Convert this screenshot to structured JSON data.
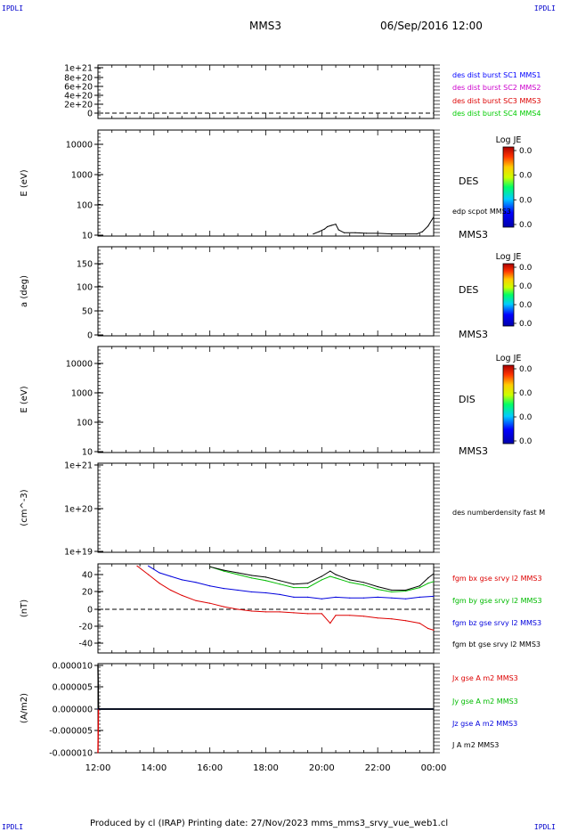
{
  "corners": {
    "top_left": "IPDLI",
    "top_right": "IPDLI",
    "bottom_left": "IPDLI",
    "bottom_right": "IPDLI"
  },
  "header": {
    "spacecraft": "MMS3",
    "datetime": "06/Sep/2016 12:00"
  },
  "footer": {
    "text": "Produced by cl (IRAP)   Printing date: 27/Nov/2023   mms_mms3_srvy_vue_web1.cl"
  },
  "x_axis": {
    "ticks": [
      "12:00",
      "14:00",
      "16:00",
      "18:00",
      "20:00",
      "22:00",
      "00:00"
    ]
  },
  "panels": [
    {
      "id": "burst",
      "ylabel": "",
      "yticks": [
        "1e+21",
        "8e+20",
        "6e+20",
        "4e+20",
        "2e+20",
        "0"
      ],
      "labels": [
        {
          "text": "des dist burst SC1 MMS1",
          "color": "#0000ff"
        },
        {
          "text": "des dist burst SC2 MMS2",
          "color": "#cc00cc"
        },
        {
          "text": "des dist burst SC3 MMS3",
          "color": "#dd0000"
        },
        {
          "text": "des dist burst SC4 MMS4",
          "color": "#00cc00"
        }
      ]
    },
    {
      "id": "des-energy",
      "ylabel": "E (eV)",
      "yticks": [
        "10000",
        "1000",
        "100",
        "10"
      ],
      "labels": [
        {
          "text": "DES",
          "color": "#000000"
        },
        {
          "text": "edp scpot MMS3",
          "color": "#000000"
        },
        {
          "text": "MMS3",
          "color": "#000000"
        }
      ],
      "colorbar": {
        "title": "Log JE",
        "values": [
          "0.0",
          "0.0",
          "0.0",
          "0.0"
        ]
      }
    },
    {
      "id": "des-pitch",
      "ylabel": "a (deg)",
      "yticks": [
        "150",
        "100",
        "50",
        "0"
      ],
      "labels": [
        {
          "text": "DES",
          "color": "#000000"
        },
        {
          "text": "MMS3",
          "color": "#000000"
        }
      ],
      "colorbar": {
        "title": "Log JE",
        "values": [
          "0.0",
          "0.0",
          "0.0",
          "0.0"
        ]
      }
    },
    {
      "id": "dis-energy",
      "ylabel": "E (eV)",
      "yticks": [
        "10000",
        "1000",
        "100",
        "10"
      ],
      "labels": [
        {
          "text": "DIS",
          "color": "#000000"
        },
        {
          "text": "MMS3",
          "color": "#000000"
        }
      ],
      "colorbar": {
        "title": "Log JE",
        "values": [
          "0.0",
          "0.0",
          "0.0",
          "0.0"
        ]
      }
    },
    {
      "id": "density",
      "ylabel": "(cm^-3)",
      "yticks": [
        "1e+21",
        "1e+20",
        "1e+19"
      ],
      "labels": [
        {
          "text": "des numberdensity fast M",
          "color": "#000000"
        }
      ]
    },
    {
      "id": "fgm",
      "ylabel": "(nT)",
      "yticks": [
        "40",
        "20",
        "0",
        "-20",
        "-40"
      ],
      "labels": [
        {
          "text": "fgm bx gse srvy l2 MMS3",
          "color": "#dd0000"
        },
        {
          "text": "fgm by gse srvy l2 MMS3",
          "color": "#00bb00"
        },
        {
          "text": "fgm bz gse srvy l2 MMS3",
          "color": "#0000dd"
        },
        {
          "text": "fgm bt gse srvy l2 MMS3",
          "color": "#000000"
        }
      ]
    },
    {
      "id": "current",
      "ylabel": "(A/m2)",
      "yticks": [
        "0.000010",
        "0.000005",
        "0.000000",
        "-0.000005",
        "-0.000010"
      ],
      "labels": [
        {
          "text": "Jx gse A m2 MMS3",
          "color": "#dd0000"
        },
        {
          "text": "Jy gse A m2 MMS3",
          "color": "#00bb00"
        },
        {
          "text": "Jz gse A m2 MMS3",
          "color": "#0000dd"
        },
        {
          "text": "J A m2 MMS3",
          "color": "#000000"
        }
      ]
    }
  ],
  "chart_data": [
    {
      "type": "line",
      "panel": "des-energy",
      "y_scale": "log",
      "ylim": [
        10,
        20000
      ],
      "series": [
        {
          "name": "edp scpot MMS3",
          "color": "#000000",
          "x": [
            19.7,
            19.9,
            20.1,
            20.2,
            20.35,
            20.5,
            20.6,
            20.8,
            21.2,
            21.6,
            22.0,
            22.5,
            23.0,
            23.4,
            23.6,
            23.8,
            24.0
          ],
          "y": [
            11,
            13,
            16,
            19,
            21,
            23,
            15,
            12,
            12,
            11.5,
            11.5,
            11,
            11,
            11,
            13,
            20,
            40
          ]
        }
      ]
    },
    {
      "type": "line",
      "panel": "fgm",
      "ylim": [
        -48,
        52
      ],
      "series": [
        {
          "name": "fgm bx gse srvy l2 MMS3",
          "color": "#dd0000",
          "x": [
            13.4,
            13.8,
            14.2,
            14.6,
            15.0,
            15.5,
            16.0,
            16.5,
            17.0,
            17.5,
            18.0,
            18.5,
            19.0,
            19.5,
            20.0,
            20.3,
            20.5,
            21.0,
            21.5,
            22.0,
            22.5,
            23.0,
            23.5,
            23.8,
            24.0
          ],
          "y": [
            50,
            40,
            30,
            22,
            16,
            10,
            7,
            3,
            0,
            -2,
            -3,
            -3,
            -4,
            -5,
            -5,
            -16,
            -7,
            -7,
            -8,
            -10,
            -11,
            -13,
            -16,
            -22,
            -24
          ]
        },
        {
          "name": "fgm by gse srvy l2 MMS3",
          "color": "#00bb00",
          "x": [
            16.0,
            16.5,
            17.0,
            17.5,
            18.0,
            18.5,
            19.0,
            19.5,
            20.0,
            20.3,
            20.5,
            21.0,
            21.5,
            22.0,
            22.5,
            23.0,
            23.5,
            23.8,
            24.0
          ],
          "y": [
            49,
            44,
            40,
            36,
            33,
            29,
            25,
            25,
            34,
            38,
            36,
            31,
            28,
            23,
            20,
            21,
            25,
            30,
            32
          ]
        },
        {
          "name": "fgm bz gse srvy l2 MMS3",
          "color": "#0000dd",
          "x": [
            13.8,
            14.2,
            14.6,
            15.0,
            15.5,
            16.0,
            16.5,
            17.0,
            17.5,
            18.0,
            18.5,
            19.0,
            19.5,
            20.0,
            20.5,
            21.0,
            21.5,
            22.0,
            22.5,
            23.0,
            23.5,
            24.0
          ],
          "y": [
            50,
            42,
            38,
            34,
            31,
            27,
            24,
            22,
            20,
            19,
            17,
            14,
            14,
            12,
            14,
            13,
            13,
            14,
            13,
            12,
            14,
            15
          ]
        },
        {
          "name": "fgm bt gse srvy l2 MMS3",
          "color": "#000000",
          "x": [
            16.0,
            16.5,
            17.0,
            17.5,
            18.0,
            18.5,
            19.0,
            19.5,
            20.0,
            20.3,
            20.5,
            21.0,
            21.5,
            22.0,
            22.5,
            23.0,
            23.5,
            23.8,
            24.0
          ],
          "y": [
            49,
            45,
            42,
            39,
            37,
            33,
            29,
            30,
            38,
            44,
            40,
            34,
            31,
            26,
            22,
            22,
            27,
            36,
            41
          ]
        }
      ]
    },
    {
      "type": "line",
      "panel": "current",
      "ylim": [
        -1e-05,
        1e-05
      ],
      "series": [
        {
          "name": "Jx gse A m2 MMS3",
          "color": "#dd0000",
          "x": [
            12.0,
            12.02,
            12.04,
            24.0
          ],
          "y": [
            -1e-05,
            3e-07,
            0.0,
            0.0
          ]
        },
        {
          "name": "Jy gse A m2 MMS3",
          "color": "#00bb00",
          "x": [
            12.0,
            12.04,
            24.0
          ],
          "y": [
            2e-07,
            0.0,
            0.0
          ]
        },
        {
          "name": "Jz gse A m2 MMS3",
          "color": "#0000dd",
          "x": [
            12.0,
            12.04,
            24.0
          ],
          "y": [
            1e-07,
            0.0,
            0.0
          ]
        },
        {
          "name": "J A m2 MMS3",
          "color": "#000000",
          "x": [
            12.0,
            12.02,
            12.04,
            24.0
          ],
          "y": [
            1e-05,
            1e-07,
            0.0,
            0.0
          ]
        }
      ]
    }
  ]
}
